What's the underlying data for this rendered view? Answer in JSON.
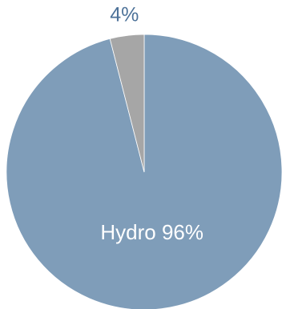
{
  "chart_data": {
    "type": "pie",
    "categories": [
      "Hydro",
      null
    ],
    "values": [
      96,
      4
    ],
    "value_labels": [
      "96%",
      "4%"
    ],
    "colors": [
      "#7f9db9",
      "#a6a6a6"
    ],
    "start_angle": 0,
    "direction": "clockwise"
  }
}
